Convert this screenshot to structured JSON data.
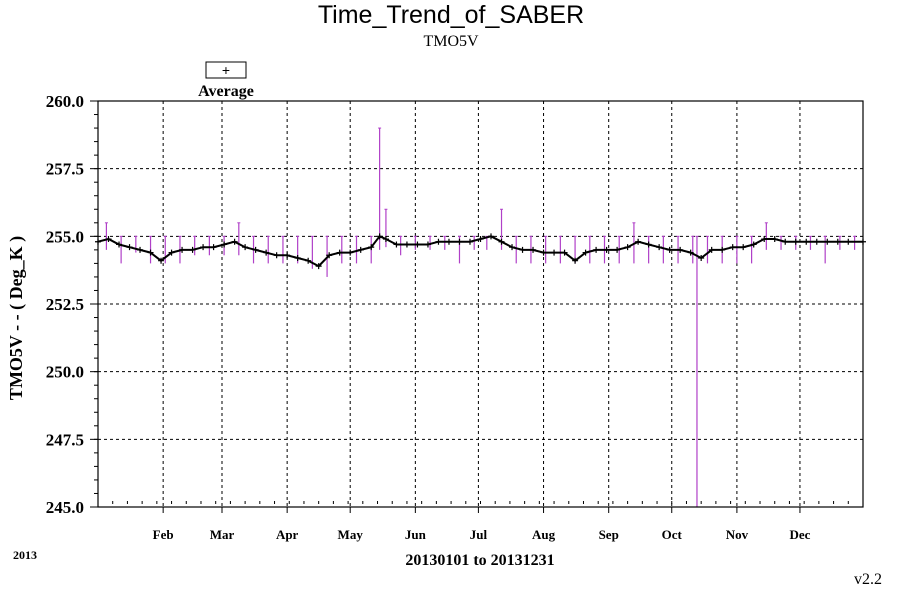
{
  "chart_data": {
    "type": "line",
    "title": "Time_Trend_of_SABER",
    "subtitle": "TMO5V",
    "ylabel": "TMO5V - - ( Deg_K )",
    "xlabel": "20130101 to 20131231",
    "year_label": "2013",
    "version": "v2.2",
    "legend": {
      "label": "Average",
      "symbol": "+",
      "placement": "top-left"
    },
    "ylim": [
      245.0,
      260.0
    ],
    "xlim": [
      "2013-01-01",
      "2013-12-31"
    ],
    "y_ticks": [
      "245.0",
      "247.5",
      "250.0",
      "252.5",
      "255.0",
      "257.5",
      "260.0"
    ],
    "x_ticks": [
      {
        "date": "2013-02-01",
        "label": "Feb"
      },
      {
        "date": "2013-03-01",
        "label": "Mar"
      },
      {
        "date": "2013-04-01",
        "label": "Apr"
      },
      {
        "date": "2013-05-01",
        "label": "May"
      },
      {
        "date": "2013-06-01",
        "label": "Jun"
      },
      {
        "date": "2013-07-01",
        "label": "Jul"
      },
      {
        "date": "2013-08-01",
        "label": "Aug"
      },
      {
        "date": "2013-09-01",
        "label": "Sep"
      },
      {
        "date": "2013-10-01",
        "label": "Oct"
      },
      {
        "date": "2013-11-01",
        "label": "Nov"
      },
      {
        "date": "2013-12-01",
        "label": "Dec"
      }
    ],
    "grid": true,
    "colors": {
      "average": "#000000",
      "range": "#b040c8"
    },
    "series": [
      {
        "name": "Average",
        "x": [
          "2013-01-01",
          "2013-01-06",
          "2013-01-11",
          "2013-01-16",
          "2013-01-21",
          "2013-01-26",
          "2013-01-31",
          "2013-02-05",
          "2013-02-10",
          "2013-02-15",
          "2013-02-20",
          "2013-02-25",
          "2013-03-02",
          "2013-03-07",
          "2013-03-12",
          "2013-03-17",
          "2013-03-22",
          "2013-03-27",
          "2013-04-01",
          "2013-04-06",
          "2013-04-11",
          "2013-04-16",
          "2013-04-21",
          "2013-04-26",
          "2013-05-01",
          "2013-05-06",
          "2013-05-11",
          "2013-05-15",
          "2013-05-18",
          "2013-05-23",
          "2013-05-28",
          "2013-06-02",
          "2013-06-07",
          "2013-06-12",
          "2013-06-17",
          "2013-06-22",
          "2013-06-27",
          "2013-07-02",
          "2013-07-07",
          "2013-07-12",
          "2013-07-17",
          "2013-07-22",
          "2013-07-27",
          "2013-08-01",
          "2013-08-06",
          "2013-08-11",
          "2013-08-16",
          "2013-08-21",
          "2013-08-26",
          "2013-08-31",
          "2013-09-05",
          "2013-09-10",
          "2013-09-15",
          "2013-09-20",
          "2013-09-25",
          "2013-09-30",
          "2013-10-05",
          "2013-10-10",
          "2013-10-15",
          "2013-10-20",
          "2013-10-25",
          "2013-10-30",
          "2013-11-04",
          "2013-11-09",
          "2013-11-14",
          "2013-11-19",
          "2013-11-24",
          "2013-11-29",
          "2013-12-04",
          "2013-12-09",
          "2013-12-14",
          "2013-12-19",
          "2013-12-24",
          "2013-12-31"
        ],
        "y": [
          254.8,
          254.9,
          254.7,
          254.6,
          254.5,
          254.4,
          254.1,
          254.4,
          254.5,
          254.5,
          254.6,
          254.6,
          254.7,
          254.8,
          254.6,
          254.5,
          254.4,
          254.3,
          254.3,
          254.2,
          254.1,
          253.9,
          254.3,
          254.4,
          254.4,
          254.5,
          254.6,
          255.0,
          254.9,
          254.7,
          254.7,
          254.7,
          254.7,
          254.8,
          254.8,
          254.8,
          254.8,
          254.9,
          255.0,
          254.8,
          254.6,
          254.5,
          254.5,
          254.4,
          254.4,
          254.4,
          254.1,
          254.4,
          254.5,
          254.5,
          254.5,
          254.6,
          254.8,
          254.7,
          254.6,
          254.5,
          254.5,
          254.4,
          254.2,
          254.5,
          254.5,
          254.6,
          254.6,
          254.7,
          254.9,
          254.9,
          254.8,
          254.8,
          254.8,
          254.8,
          254.8,
          254.8,
          254.8,
          254.8
        ]
      },
      {
        "name": "",
        "type": "range",
        "x": [
          "2013-01-05",
          "2013-01-12",
          "2013-01-19",
          "2013-01-26",
          "2013-02-02",
          "2013-02-09",
          "2013-02-16",
          "2013-02-23",
          "2013-03-02",
          "2013-03-09",
          "2013-03-16",
          "2013-03-23",
          "2013-03-30",
          "2013-04-06",
          "2013-04-13",
          "2013-04-20",
          "2013-04-27",
          "2013-05-04",
          "2013-05-11",
          "2013-05-15",
          "2013-05-18",
          "2013-05-25",
          "2013-06-01",
          "2013-06-08",
          "2013-06-15",
          "2013-06-22",
          "2013-06-29",
          "2013-07-05",
          "2013-07-12",
          "2013-07-19",
          "2013-07-26",
          "2013-08-02",
          "2013-08-09",
          "2013-08-16",
          "2013-08-23",
          "2013-08-30",
          "2013-09-06",
          "2013-09-13",
          "2013-09-20",
          "2013-09-27",
          "2013-10-04",
          "2013-10-11",
          "2013-10-13",
          "2013-10-18",
          "2013-10-25",
          "2013-11-01",
          "2013-11-08",
          "2013-11-15",
          "2013-11-22",
          "2013-11-29",
          "2013-12-06",
          "2013-12-13",
          "2013-12-20",
          "2013-12-27"
        ],
        "low": [
          254.5,
          254.0,
          254.4,
          254.0,
          254.0,
          254.0,
          254.3,
          254.3,
          254.3,
          254.3,
          254.0,
          254.0,
          254.0,
          254.0,
          253.8,
          253.5,
          254.0,
          254.0,
          254.0,
          254.5,
          254.6,
          254.3,
          254.5,
          254.5,
          254.5,
          254.0,
          254.5,
          254.5,
          254.5,
          254.0,
          254.0,
          254.0,
          254.0,
          254.0,
          254.0,
          254.0,
          254.0,
          254.0,
          254.0,
          254.0,
          254.0,
          254.0,
          245.0,
          254.0,
          254.0,
          254.0,
          254.0,
          254.5,
          254.5,
          254.5,
          254.5,
          254.0,
          254.5,
          254.5
        ],
        "high": [
          255.5,
          255.0,
          255.0,
          255.0,
          255.0,
          255.0,
          255.0,
          255.0,
          255.0,
          255.5,
          255.0,
          255.0,
          255.0,
          255.0,
          255.0,
          255.0,
          255.0,
          255.0,
          255.0,
          259.0,
          256.0,
          255.0,
          255.0,
          255.0,
          255.0,
          255.0,
          255.0,
          255.0,
          256.0,
          255.0,
          255.0,
          255.0,
          255.0,
          255.0,
          255.0,
          255.0,
          255.0,
          255.5,
          255.0,
          255.0,
          255.0,
          255.0,
          255.0,
          255.0,
          255.0,
          255.0,
          255.0,
          255.5,
          255.0,
          255.0,
          255.0,
          255.0,
          255.0,
          255.0
        ]
      }
    ]
  }
}
